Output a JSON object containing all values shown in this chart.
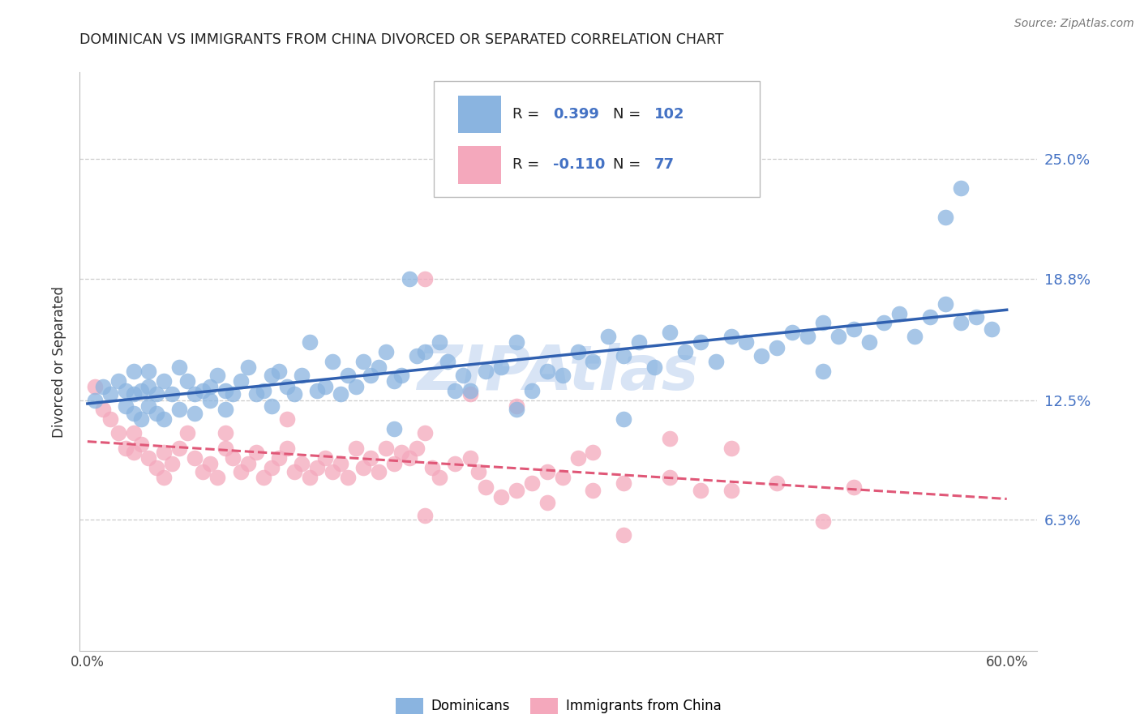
{
  "title": "DOMINICAN VS IMMIGRANTS FROM CHINA DIVORCED OR SEPARATED CORRELATION CHART",
  "source": "Source: ZipAtlas.com",
  "ylabel": "Divorced or Separated",
  "xlabel_ticks": [
    "0.0%",
    "",
    "",
    "",
    "",
    "",
    "60.0%"
  ],
  "xlabel_vals": [
    0.0,
    0.1,
    0.2,
    0.3,
    0.4,
    0.5,
    0.6
  ],
  "ytick_labels": [
    "6.3%",
    "12.5%",
    "18.8%",
    "25.0%"
  ],
  "ytick_vals": [
    0.063,
    0.125,
    0.188,
    0.25
  ],
  "ylim": [
    -0.005,
    0.295
  ],
  "xlim": [
    -0.005,
    0.62
  ],
  "blue_R": 0.399,
  "blue_N": 102,
  "pink_R": -0.11,
  "pink_N": 77,
  "legend_label_blue": "Dominicans",
  "legend_label_pink": "Immigrants from China",
  "blue_color": "#8AB4E0",
  "pink_color": "#F4A8BC",
  "blue_line_color": "#3060B0",
  "pink_line_color": "#E05878",
  "grid_color": "#CCCCCC",
  "title_color": "#222222",
  "ytick_color": "#4472C4",
  "watermark_color": "#D8E4F5",
  "blue_scatter_x": [
    0.005,
    0.01,
    0.015,
    0.02,
    0.025,
    0.025,
    0.03,
    0.03,
    0.03,
    0.035,
    0.035,
    0.04,
    0.04,
    0.04,
    0.045,
    0.045,
    0.05,
    0.05,
    0.055,
    0.06,
    0.06,
    0.065,
    0.07,
    0.07,
    0.075,
    0.08,
    0.08,
    0.085,
    0.09,
    0.09,
    0.095,
    0.1,
    0.105,
    0.11,
    0.115,
    0.12,
    0.12,
    0.125,
    0.13,
    0.135,
    0.14,
    0.145,
    0.15,
    0.155,
    0.16,
    0.165,
    0.17,
    0.175,
    0.18,
    0.185,
    0.19,
    0.195,
    0.2,
    0.205,
    0.21,
    0.215,
    0.22,
    0.23,
    0.235,
    0.24,
    0.245,
    0.25,
    0.26,
    0.27,
    0.28,
    0.29,
    0.3,
    0.31,
    0.32,
    0.33,
    0.34,
    0.35,
    0.36,
    0.37,
    0.38,
    0.39,
    0.4,
    0.41,
    0.42,
    0.43,
    0.44,
    0.45,
    0.46,
    0.47,
    0.48,
    0.49,
    0.5,
    0.51,
    0.52,
    0.53,
    0.54,
    0.55,
    0.56,
    0.57,
    0.58,
    0.59,
    0.2,
    0.28,
    0.35,
    0.48,
    0.56,
    0.57
  ],
  "blue_scatter_y": [
    0.125,
    0.132,
    0.128,
    0.135,
    0.13,
    0.122,
    0.118,
    0.128,
    0.14,
    0.13,
    0.115,
    0.122,
    0.14,
    0.132,
    0.118,
    0.128,
    0.115,
    0.135,
    0.128,
    0.12,
    0.142,
    0.135,
    0.128,
    0.118,
    0.13,
    0.132,
    0.125,
    0.138,
    0.12,
    0.13,
    0.128,
    0.135,
    0.142,
    0.128,
    0.13,
    0.122,
    0.138,
    0.14,
    0.132,
    0.128,
    0.138,
    0.155,
    0.13,
    0.132,
    0.145,
    0.128,
    0.138,
    0.132,
    0.145,
    0.138,
    0.142,
    0.15,
    0.135,
    0.138,
    0.188,
    0.148,
    0.15,
    0.155,
    0.145,
    0.13,
    0.138,
    0.13,
    0.14,
    0.142,
    0.155,
    0.13,
    0.14,
    0.138,
    0.15,
    0.145,
    0.158,
    0.148,
    0.155,
    0.142,
    0.16,
    0.15,
    0.155,
    0.145,
    0.158,
    0.155,
    0.148,
    0.152,
    0.16,
    0.158,
    0.165,
    0.158,
    0.162,
    0.155,
    0.165,
    0.17,
    0.158,
    0.168,
    0.175,
    0.165,
    0.168,
    0.162,
    0.11,
    0.12,
    0.115,
    0.14,
    0.22,
    0.235
  ],
  "pink_scatter_x": [
    0.005,
    0.01,
    0.015,
    0.02,
    0.025,
    0.03,
    0.03,
    0.035,
    0.04,
    0.045,
    0.05,
    0.05,
    0.055,
    0.06,
    0.065,
    0.07,
    0.075,
    0.08,
    0.085,
    0.09,
    0.09,
    0.095,
    0.1,
    0.105,
    0.11,
    0.115,
    0.12,
    0.125,
    0.13,
    0.135,
    0.14,
    0.145,
    0.15,
    0.155,
    0.16,
    0.165,
    0.17,
    0.175,
    0.18,
    0.185,
    0.19,
    0.195,
    0.2,
    0.205,
    0.21,
    0.215,
    0.22,
    0.225,
    0.23,
    0.24,
    0.25,
    0.255,
    0.26,
    0.27,
    0.28,
    0.29,
    0.3,
    0.31,
    0.32,
    0.33,
    0.35,
    0.38,
    0.4,
    0.45,
    0.5,
    0.13,
    0.22,
    0.25,
    0.28,
    0.33,
    0.38,
    0.42,
    0.22,
    0.3,
    0.35,
    0.42,
    0.48
  ],
  "pink_scatter_y": [
    0.132,
    0.12,
    0.115,
    0.108,
    0.1,
    0.098,
    0.108,
    0.102,
    0.095,
    0.09,
    0.098,
    0.085,
    0.092,
    0.1,
    0.108,
    0.095,
    0.088,
    0.092,
    0.085,
    0.1,
    0.108,
    0.095,
    0.088,
    0.092,
    0.098,
    0.085,
    0.09,
    0.095,
    0.1,
    0.088,
    0.092,
    0.085,
    0.09,
    0.095,
    0.088,
    0.092,
    0.085,
    0.1,
    0.09,
    0.095,
    0.088,
    0.1,
    0.092,
    0.098,
    0.095,
    0.1,
    0.108,
    0.09,
    0.085,
    0.092,
    0.095,
    0.088,
    0.08,
    0.075,
    0.078,
    0.082,
    0.088,
    0.085,
    0.095,
    0.078,
    0.082,
    0.085,
    0.078,
    0.082,
    0.08,
    0.115,
    0.188,
    0.128,
    0.122,
    0.098,
    0.105,
    0.1,
    0.065,
    0.072,
    0.055,
    0.078,
    0.062
  ]
}
